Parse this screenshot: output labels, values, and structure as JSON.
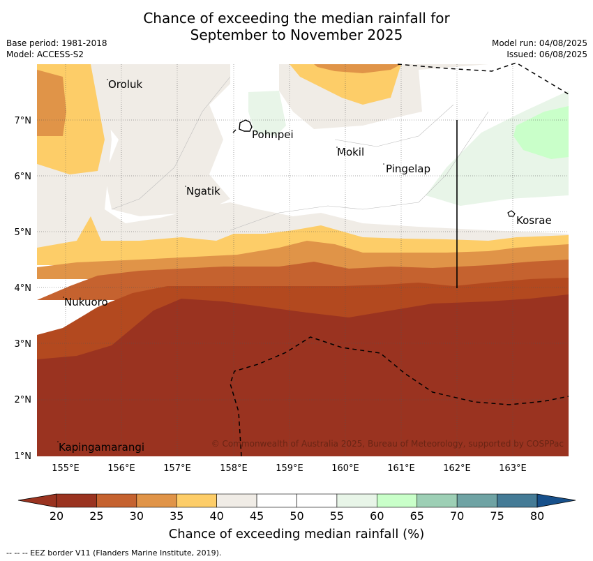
{
  "title_line1": "Chance of exceeding the median rainfall for",
  "title_line2": "September to November 2025",
  "meta": {
    "base_period": "Base period: 1981-2018",
    "model": "Model: ACCESS-S2",
    "model_run": "Model run: 04/08/2025",
    "issued": "Issued: 06/08/2025"
  },
  "map": {
    "lat_labels": [
      "7°N",
      "6°N",
      "5°N",
      "4°N",
      "3°N",
      "2°N",
      "1°N"
    ],
    "lon_labels": [
      "155°E",
      "156°E",
      "157°E",
      "158°E",
      "159°E",
      "160°E",
      "161°E",
      "162°E",
      "163°E"
    ],
    "places": [
      "Oroluk",
      "Pohnpei",
      "Mokil",
      "Pingelap",
      "Ngatik",
      "Kosrae",
      "Nukuoro",
      "Kapingamarangi"
    ],
    "copyright": "© Commonwealth of Australia 2025, Bureau of Meteorology, supported by COSPPac"
  },
  "colorbar": {
    "ticks": [
      "20",
      "25",
      "30",
      "35",
      "40",
      "45",
      "50",
      "55",
      "60",
      "65",
      "70",
      "75",
      "80"
    ],
    "colors": [
      "#9a3320",
      "#c5622f",
      "#e09448",
      "#fdcd68",
      "#f0ece6",
      "#ffffff",
      "#ffffff",
      "#e8f5e8",
      "#c9ffc9",
      "#9dcfb5",
      "#6fa3a4",
      "#447b96",
      "#17508b"
    ],
    "title": "Chance of exceeding median rainfall (%)"
  },
  "footnote": "--  --  -- EEZ border V11 (Flanders Marine Institute, 2019)."
}
